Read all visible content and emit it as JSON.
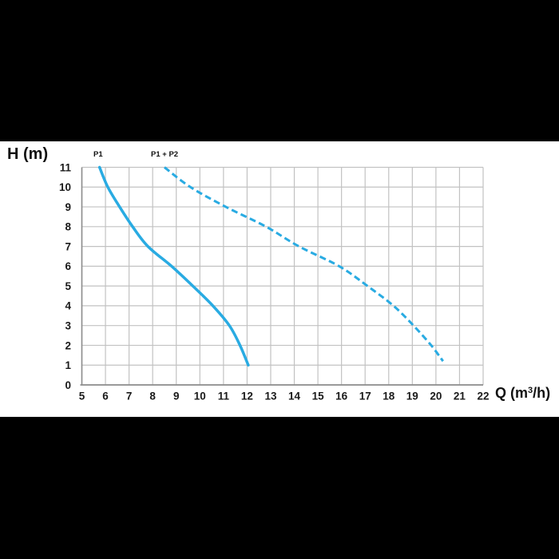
{
  "page": {
    "y_axis_title": "H (m)",
    "x_axis_title": {
      "prefix": "Q (m",
      "sup": "3",
      "suffix": "/h)"
    },
    "curve_labels": {
      "p1": "P1",
      "p1p2": "P1 + P2"
    }
  },
  "colors": {
    "curve": "#29ABE2",
    "grid": "#c2c2c2",
    "axis": "#8d8d8d",
    "text": "#1a1a1a",
    "band_background": "#ffffff",
    "page_background": "#000000"
  },
  "chart_data": {
    "type": "line",
    "title": "",
    "xlabel": "Q (m³/h)",
    "ylabel": "H (m)",
    "xlim": [
      5,
      22
    ],
    "ylim": [
      0,
      11
    ],
    "x_ticks": [
      5,
      6,
      7,
      8,
      9,
      10,
      11,
      12,
      13,
      14,
      15,
      16,
      17,
      18,
      19,
      20,
      21,
      22
    ],
    "y_ticks": [
      0,
      1,
      2,
      3,
      4,
      5,
      6,
      7,
      8,
      9,
      10,
      11
    ],
    "grid": true,
    "legend_position": "above-curves",
    "series": [
      {
        "name": "P1",
        "style": "solid",
        "points": [
          [
            5.75,
            11
          ],
          [
            6.1,
            10
          ],
          [
            6.6,
            9
          ],
          [
            7.15,
            8
          ],
          [
            7.8,
            7
          ],
          [
            8.8,
            6
          ],
          [
            9.7,
            5
          ],
          [
            10.55,
            4
          ],
          [
            11.25,
            3
          ],
          [
            11.7,
            2
          ],
          [
            12.05,
            1
          ]
        ]
      },
      {
        "name": "P1 + P2",
        "style": "dashed",
        "points": [
          [
            8.5,
            11
          ],
          [
            9.6,
            10
          ],
          [
            11.1,
            9
          ],
          [
            12.8,
            8
          ],
          [
            14.2,
            7
          ],
          [
            15.9,
            6
          ],
          [
            17.1,
            5
          ],
          [
            18.2,
            4
          ],
          [
            19.05,
            3
          ],
          [
            19.8,
            2
          ],
          [
            20.3,
            1.2
          ]
        ]
      }
    ]
  }
}
